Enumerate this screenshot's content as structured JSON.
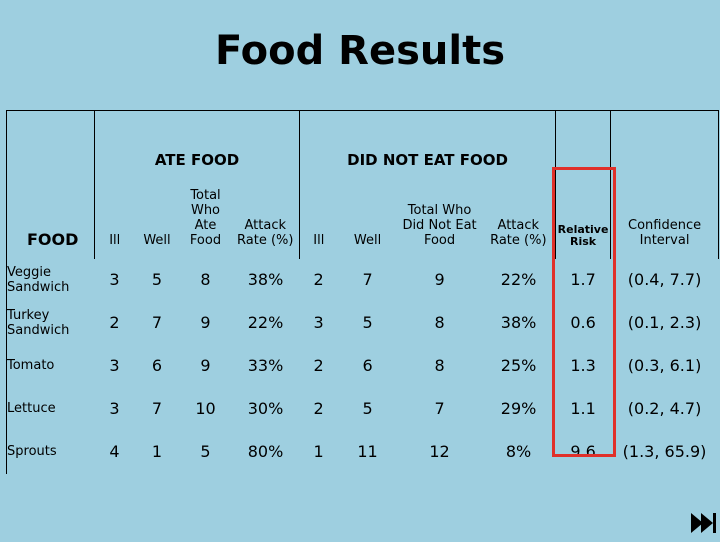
{
  "title": "Food Results",
  "group_headers": {
    "ate": "ATE FOOD",
    "did_not_eat": "DID NOT EAT FOOD"
  },
  "column_headers": {
    "food": "FOOD",
    "ill_ate": "Ill",
    "well_ate": "Well",
    "total_ate": "Total Who Ate Food",
    "attack_ate": "Attack Rate (%)",
    "ill_not": "Ill",
    "well_not": "Well",
    "total_not": "Total Who Did Not Eat Food",
    "attack_not": "Attack Rate (%)",
    "relative_risk": "Relative Risk",
    "ci": "Confidence Interval"
  },
  "rows": [
    {
      "food": "Veggie Sandwich",
      "ill_ate": "3",
      "well_ate": "5",
      "total_ate": "8",
      "attack_ate": "38%",
      "ill_not": "2",
      "well_not": "7",
      "total_not": "9",
      "attack_not": "22%",
      "rr": "1.7",
      "ci": "(0.4, 7.7)"
    },
    {
      "food": "Turkey Sandwich",
      "ill_ate": "2",
      "well_ate": "7",
      "total_ate": "9",
      "attack_ate": "22%",
      "ill_not": "3",
      "well_not": "5",
      "total_not": "8",
      "attack_not": "38%",
      "rr": "0.6",
      "ci": "(0.1, 2.3)"
    },
    {
      "food": "Tomato",
      "ill_ate": "3",
      "well_ate": "6",
      "total_ate": "9",
      "attack_ate": "33%",
      "ill_not": "2",
      "well_not": "6",
      "total_not": "8",
      "attack_not": "25%",
      "rr": "1.3",
      "ci": "(0.3, 6.1)"
    },
    {
      "food": "Lettuce",
      "ill_ate": "3",
      "well_ate": "7",
      "total_ate": "10",
      "attack_ate": "30%",
      "ill_not": "2",
      "well_not": "5",
      "total_not": "7",
      "attack_not": "29%",
      "rr": "1.1",
      "ci": "(0.2, 4.7)"
    },
    {
      "food": "Sprouts",
      "ill_ate": "4",
      "well_ate": "1",
      "total_ate": "5",
      "attack_ate": "80%",
      "ill_not": "1",
      "well_not": "11",
      "total_not": "12",
      "attack_not": "8%",
      "rr": "9.6",
      "ci": "(1.3, 65.9)"
    }
  ],
  "highlight_color": "#e0302a",
  "background_color": "#9ecfe0",
  "nav_icon": "fast-forward-icon"
}
